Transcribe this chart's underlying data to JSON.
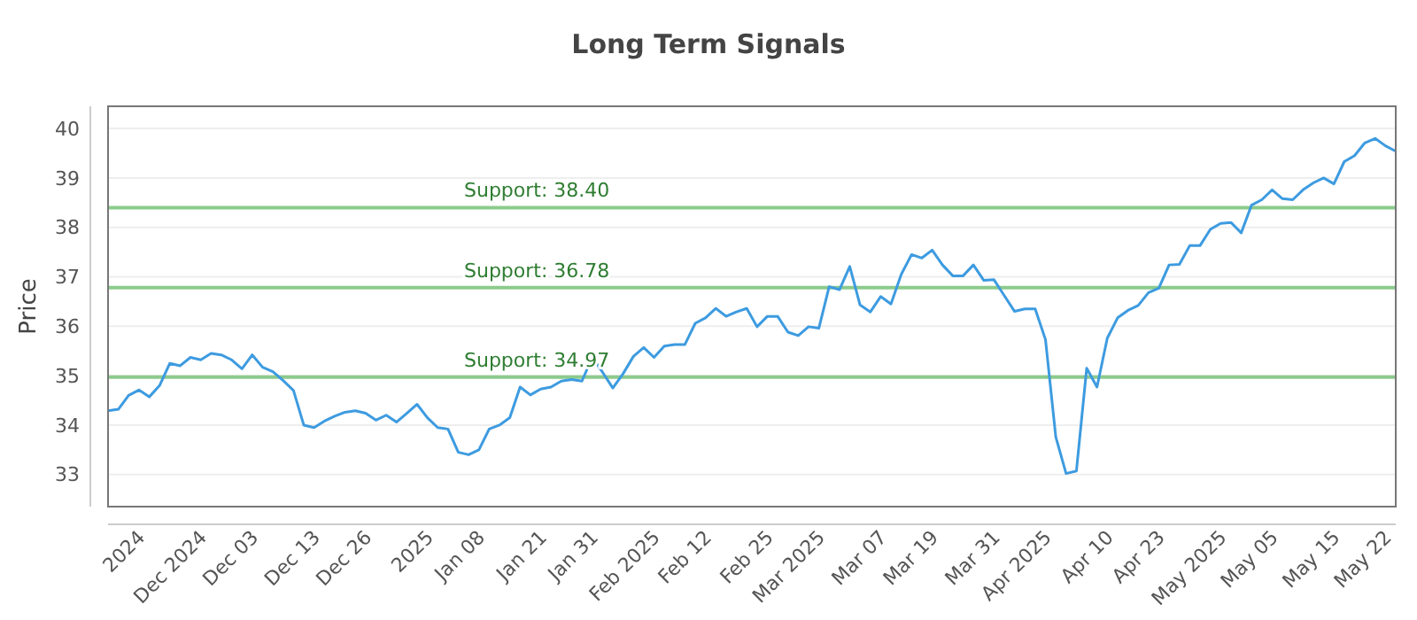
{
  "chart_data": {
    "type": "line",
    "title": "Long Term Signals",
    "ylabel": "Price",
    "categories": [
      null,
      null,
      null,
      "2024",
      null,
      null,
      null,
      null,
      null,
      "Dec 2024",
      null,
      null,
      null,
      null,
      "Dec 03",
      null,
      null,
      null,
      null,
      null,
      "Dec 13",
      null,
      null,
      null,
      null,
      "Dec 26",
      null,
      null,
      null,
      null,
      null,
      "2025",
      null,
      null,
      null,
      null,
      "Jan 08",
      null,
      null,
      null,
      null,
      null,
      "Jan 21",
      null,
      null,
      null,
      null,
      "Jan 31",
      null,
      null,
      null,
      null,
      null,
      "Feb 2025",
      null,
      null,
      null,
      null,
      "Feb 12",
      null,
      null,
      null,
      null,
      null,
      "Feb 25",
      null,
      null,
      null,
      null,
      "Mar 2025",
      null,
      null,
      null,
      null,
      null,
      "Mar 07",
      null,
      null,
      null,
      null,
      "Mar 19",
      null,
      null,
      null,
      null,
      null,
      "Mar 31",
      null,
      null,
      null,
      null,
      "Apr 2025",
      null,
      null,
      null,
      null,
      null,
      "Apr 10",
      null,
      null,
      null,
      null,
      "Apr 23",
      null,
      null,
      null,
      null,
      null,
      "May 2025",
      null,
      null,
      null,
      null,
      "May 05",
      null,
      null,
      null,
      null,
      null,
      "May 15",
      null,
      null,
      null,
      null,
      "May 22",
      null
    ],
    "series": [
      {
        "color": "#3d9be0",
        "values": [
          34.29,
          34.32,
          34.6,
          34.71,
          34.57,
          34.8,
          35.25,
          35.2,
          35.37,
          35.32,
          35.45,
          35.42,
          35.32,
          35.14,
          35.42,
          35.17,
          35.08,
          34.9,
          34.7,
          34.0,
          33.95,
          34.08,
          34.18,
          34.26,
          34.29,
          34.24,
          34.1,
          34.2,
          34.06,
          34.24,
          34.42,
          34.15,
          33.95,
          33.92,
          33.45,
          33.4,
          33.5,
          33.92,
          34.0,
          34.15,
          34.77,
          34.61,
          34.73,
          34.77,
          34.89,
          34.92,
          34.89,
          35.37,
          35.07,
          34.75,
          35.04,
          35.39,
          35.57,
          35.37,
          35.6,
          35.63,
          35.63,
          36.06,
          36.17,
          36.36,
          36.2,
          36.29,
          36.36,
          35.99,
          36.2,
          36.2,
          35.88,
          35.81,
          35.99,
          35.96,
          36.8,
          36.74,
          37.21,
          36.43,
          36.29,
          36.6,
          36.45,
          37.05,
          37.45,
          37.38,
          37.54,
          37.24,
          37.02,
          37.02,
          37.24,
          36.93,
          36.94,
          36.62,
          36.3,
          36.35,
          36.35,
          35.73,
          33.76,
          33.02,
          33.07,
          35.15,
          34.77,
          35.76,
          36.17,
          36.32,
          36.42,
          36.68,
          36.77,
          37.24,
          37.25,
          37.63,
          37.63,
          37.96,
          38.08,
          38.1,
          37.89,
          38.45,
          38.56,
          38.76,
          38.58,
          38.56,
          38.76,
          38.9,
          39.0,
          38.88,
          39.33,
          39.45,
          39.71,
          39.8,
          39.65,
          39.54
        ]
      }
    ],
    "ylim": [
      32.35,
      40.45
    ],
    "yticks": [
      33,
      34,
      35,
      36,
      37,
      38,
      39,
      40
    ],
    "grid": "y",
    "marker": "none",
    "line_style": "solid",
    "ref_lines": [
      {
        "axis": "y",
        "value": 38.4,
        "label": "Support: 38.40",
        "color": "#8ccb8c"
      },
      {
        "axis": "y",
        "value": 36.78,
        "label": "Support: 36.78",
        "color": "#8ccb8c"
      },
      {
        "axis": "y",
        "value": 34.97,
        "label": "Support: 34.97",
        "color": "#8ccb8c"
      }
    ]
  }
}
